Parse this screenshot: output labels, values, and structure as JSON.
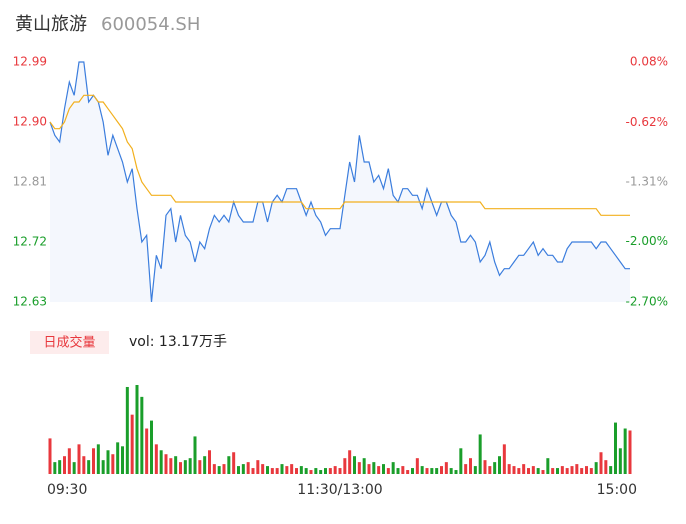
{
  "chart_data": {
    "type": "line",
    "title": "黄山旅游",
    "subtitle": "600054.SH",
    "categories": [
      "09:30",
      null,
      null,
      null,
      null,
      null,
      null,
      null,
      null,
      null,
      null,
      null,
      null,
      null,
      null,
      null,
      null,
      null,
      null,
      null,
      null,
      null,
      null,
      null,
      null,
      null,
      null,
      null,
      null,
      null,
      null,
      null,
      null,
      null,
      null,
      null,
      null,
      null,
      null,
      null,
      null,
      null,
      null,
      null,
      null,
      null,
      null,
      null,
      null,
      null,
      null,
      null,
      null,
      null,
      null,
      null,
      null,
      null,
      null,
      null,
      "11:30/13:00",
      null,
      null,
      null,
      null,
      null,
      null,
      null,
      null,
      null,
      null,
      null,
      null,
      null,
      null,
      null,
      null,
      null,
      null,
      null,
      null,
      null,
      null,
      null,
      null,
      null,
      null,
      null,
      null,
      null,
      null,
      null,
      null,
      null,
      null,
      null,
      null,
      null,
      null,
      null,
      null,
      null,
      null,
      null,
      null,
      null,
      null,
      null,
      null,
      null,
      null,
      null,
      null,
      null,
      null,
      null,
      null,
      null,
      null,
      null,
      "15:00"
    ],
    "series": [
      {
        "color": "#3b7ddd",
        "values": [
          12.9,
          12.88,
          12.87,
          12.92,
          12.96,
          12.94,
          12.99,
          12.99,
          12.93,
          12.94,
          12.93,
          12.9,
          12.85,
          12.88,
          12.86,
          12.84,
          12.81,
          12.83,
          12.77,
          12.72,
          12.73,
          12.63,
          12.7,
          12.68,
          12.76,
          12.77,
          12.72,
          12.76,
          12.73,
          12.72,
          12.69,
          12.72,
          12.71,
          12.74,
          12.76,
          12.75,
          12.76,
          12.75,
          12.78,
          12.76,
          12.75,
          12.75,
          12.75,
          12.78,
          12.78,
          12.75,
          12.78,
          12.79,
          12.78,
          12.8,
          12.8,
          12.8,
          12.78,
          12.76,
          12.78,
          12.76,
          12.75,
          12.73,
          12.74,
          12.74,
          12.74,
          12.79,
          12.84,
          12.81,
          12.88,
          12.84,
          12.84,
          12.81,
          12.82,
          12.8,
          12.83,
          12.79,
          12.78,
          12.8,
          12.8,
          12.79,
          12.79,
          12.77,
          12.8,
          12.78,
          12.76,
          12.78,
          12.78,
          12.76,
          12.75,
          12.72,
          12.72,
          12.73,
          12.72,
          12.69,
          12.7,
          12.72,
          12.69,
          12.67,
          12.68,
          12.68,
          12.69,
          12.7,
          12.7,
          12.71,
          12.72,
          12.7,
          12.71,
          12.7,
          12.7,
          12.69,
          12.69,
          12.71,
          12.72,
          12.72,
          12.72,
          12.72,
          12.72,
          12.71,
          12.72,
          12.72,
          12.71,
          12.7,
          12.69,
          12.68,
          12.68
        ]
      },
      {
        "color": "#f2b01e",
        "values": [
          12.9,
          12.89,
          12.89,
          12.9,
          12.92,
          12.93,
          12.93,
          12.94,
          12.94,
          12.94,
          12.93,
          12.93,
          12.92,
          12.91,
          12.9,
          12.89,
          12.87,
          12.86,
          12.83,
          12.81,
          12.8,
          12.79,
          12.79,
          12.79,
          12.79,
          12.79,
          12.78,
          12.78,
          12.78,
          12.78,
          12.78,
          12.78,
          12.78,
          12.78,
          12.78,
          12.78,
          12.78,
          12.78,
          12.78,
          12.78,
          12.78,
          12.78,
          12.78,
          12.78,
          12.78,
          12.78,
          12.78,
          12.78,
          12.78,
          12.78,
          12.78,
          12.78,
          12.78,
          12.77,
          12.77,
          12.77,
          12.77,
          12.77,
          12.77,
          12.77,
          12.77,
          12.78,
          12.78,
          12.78,
          12.78,
          12.78,
          12.78,
          12.78,
          12.78,
          12.78,
          12.78,
          12.78,
          12.78,
          12.78,
          12.78,
          12.78,
          12.78,
          12.78,
          12.78,
          12.78,
          12.78,
          12.78,
          12.78,
          12.78,
          12.78,
          12.78,
          12.78,
          12.78,
          12.78,
          12.78,
          12.77,
          12.77,
          12.77,
          12.77,
          12.77,
          12.77,
          12.77,
          12.77,
          12.77,
          12.77,
          12.77,
          12.77,
          12.77,
          12.77,
          12.77,
          12.77,
          12.77,
          12.77,
          12.77,
          12.77,
          12.77,
          12.77,
          12.77,
          12.77,
          12.76,
          12.76,
          12.76,
          12.76,
          12.76,
          12.76,
          12.76
        ]
      }
    ],
    "area_color": "#f4f7fd",
    "ylim": [
      12.63,
      12.99
    ],
    "yticks": [
      12.63,
      12.72,
      12.81,
      {
        "value": 12.9,
        "label": "12.90"
      },
      12.99
    ],
    "ytick_colors": [
      "#1a9e2a",
      "#1a9e2a",
      "#999999",
      "#e8383d",
      "#e8383d"
    ],
    "y2lim": [
      -2.7,
      0.08
    ],
    "y2ticks": [
      {
        "value": -2.7,
        "label": "-2.70%"
      },
      {
        "value": -2.0,
        "label": "-2.00%"
      },
      {
        "value": -1.31,
        "label": "-1.31%"
      },
      {
        "value": -0.62,
        "label": "-0.62%"
      },
      {
        "value": 0.08,
        "label": "0.08%"
      }
    ],
    "volume": {
      "label": "日成交量",
      "text": "vol: 13.17万手",
      "up_color": "#e8383d",
      "down_color": "#1a9e2a",
      "values": [
        1800,
        600,
        700,
        900,
        1300,
        600,
        1500,
        900,
        700,
        1300,
        1500,
        700,
        1200,
        1000,
        1600,
        1400,
        4400,
        3000,
        4500,
        3900,
        2300,
        2700,
        1500,
        1200,
        1000,
        800,
        900,
        600,
        700,
        800,
        1900,
        700,
        900,
        1200,
        500,
        400,
        500,
        900,
        1100,
        400,
        500,
        600,
        300,
        700,
        500,
        400,
        300,
        300,
        500,
        400,
        500,
        300,
        400,
        300,
        200,
        300,
        200,
        300,
        300,
        400,
        300,
        800,
        1200,
        900,
        600,
        800,
        500,
        600,
        400,
        500,
        300,
        600,
        300,
        400,
        200,
        300,
        800,
        400,
        300,
        300,
        300,
        400,
        600,
        300,
        200,
        1300,
        500,
        800,
        400,
        2000,
        700,
        400,
        600,
        900,
        1500,
        500,
        400,
        300,
        500,
        300,
        400,
        300,
        200,
        800,
        300,
        300,
        400,
        300,
        400,
        500,
        300,
        400,
        300,
        600,
        1100,
        700,
        400,
        2600,
        1300,
        2300,
        2200
      ]
    }
  }
}
